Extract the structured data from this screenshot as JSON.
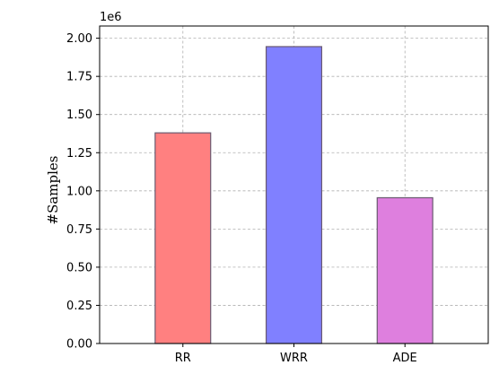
{
  "chart_data": {
    "type": "bar",
    "categories": [
      "RR",
      "WRR",
      "ADE"
    ],
    "values": [
      1380000,
      1945000,
      955000
    ],
    "colors": [
      "#ff8080",
      "#8080ff",
      "#de7fde"
    ],
    "ylabel": "#Samples",
    "xlabel": "",
    "title": "",
    "ylim": [
      0,
      2080000
    ],
    "y_ticks": [
      0,
      250000,
      500000,
      750000,
      1000000,
      1250000,
      1500000,
      1750000,
      2000000
    ],
    "y_tick_labels": [
      "0.00",
      "0.25",
      "0.50",
      "0.75",
      "1.00",
      "1.25",
      "1.50",
      "1.75",
      "2.00"
    ],
    "y_offset_label": "1e6",
    "grid": true
  }
}
